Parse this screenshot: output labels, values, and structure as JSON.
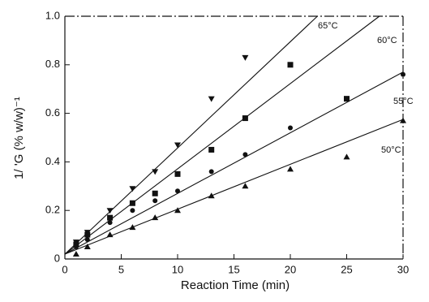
{
  "chart_data": {
    "type": "scatter",
    "xlabel": "Reaction Time (min)",
    "ylabel": "1/ 'G (% w/w)⁻¹",
    "xlim": [
      0,
      30
    ],
    "ylim": [
      0,
      1
    ],
    "xticks": [
      0,
      5,
      10,
      15,
      20,
      25,
      30
    ],
    "yticks": [
      0,
      {
        "value": 0.2,
        "label": "0.2"
      },
      {
        "value": 0.4,
        "label": "0.4"
      },
      {
        "value": 0.6,
        "label": "0.6"
      },
      {
        "value": 0.8,
        "label": "0.8"
      },
      {
        "value": 1,
        "label": "1.0"
      }
    ],
    "x": [
      1,
      2,
      4,
      6,
      8,
      10,
      13,
      16,
      20,
      25,
      30
    ],
    "series": [
      {
        "name": "65°C",
        "marker": "triangle-down",
        "color": "#111",
        "values": [
          0.07,
          0.11,
          0.2,
          0.29,
          0.36,
          0.47,
          0.66,
          0.83,
          null,
          null,
          null
        ],
        "fit_x": [
          0,
          22.4
        ],
        "fit_y": [
          0.02,
          1
        ]
      },
      {
        "name": "60°C",
        "marker": "square",
        "color": "#111",
        "values": [
          0.06,
          0.1,
          0.17,
          0.23,
          0.27,
          0.35,
          0.45,
          0.58,
          0.8,
          0.66,
          null
        ],
        "fit_x": [
          0,
          27.9
        ],
        "fit_y": [
          0.02,
          1
        ]
      },
      {
        "name": "55°C",
        "marker": "circle",
        "color": "#111",
        "values": [
          0.05,
          0.08,
          0.15,
          0.2,
          0.24,
          0.28,
          0.36,
          0.43,
          0.54,
          null,
          0.76
        ],
        "fit_x": [
          0,
          30
        ],
        "fit_y": [
          0.02,
          0.77
        ]
      },
      {
        "name": "50°C",
        "marker": "triangle-up",
        "color": "#111",
        "values": [
          0.02,
          0.05,
          0.1,
          0.13,
          0.17,
          0.2,
          0.26,
          0.3,
          0.37,
          0.42,
          0.57
        ],
        "fit_x": [
          0,
          30
        ],
        "fit_y": [
          0.02,
          0.575
        ]
      }
    ]
  }
}
